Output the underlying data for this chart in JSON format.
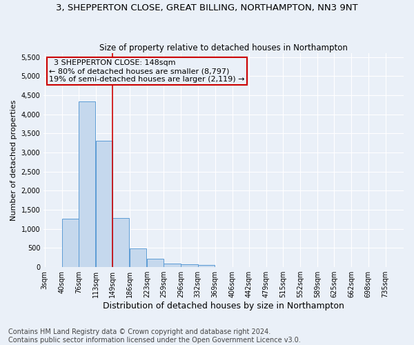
{
  "title": "3, SHEPPERTON CLOSE, GREAT BILLING, NORTHAMPTON, NN3 9NT",
  "subtitle": "Size of property relative to detached houses in Northampton",
  "xlabel": "Distribution of detached houses by size in Northampton",
  "ylabel": "Number of detached properties",
  "footer_line1": "Contains HM Land Registry data © Crown copyright and database right 2024.",
  "footer_line2": "Contains public sector information licensed under the Open Government Licence v3.0.",
  "annotation_title": "3 SHEPPERTON CLOSE: 148sqm",
  "annotation_line1": "← 80% of detached houses are smaller (8,797)",
  "annotation_line2": "19% of semi-detached houses are larger (2,119) →",
  "bar_color": "#c5d8ed",
  "bar_edge_color": "#5b9bd5",
  "vline_color": "#cc0000",
  "bg_color": "#eaf0f8",
  "annotation_box_color": "#cc0000",
  "categories": [
    "3sqm",
    "40sqm",
    "76sqm",
    "113sqm",
    "149sqm",
    "186sqm",
    "223sqm",
    "259sqm",
    "296sqm",
    "332sqm",
    "369sqm",
    "406sqm",
    "442sqm",
    "479sqm",
    "515sqm",
    "552sqm",
    "589sqm",
    "625sqm",
    "662sqm",
    "698sqm",
    "735sqm"
  ],
  "bin_edges": [
    3,
    40,
    76,
    113,
    149,
    186,
    223,
    259,
    296,
    332,
    369,
    406,
    442,
    479,
    515,
    552,
    589,
    625,
    662,
    698,
    735
  ],
  "bin_width": 37,
  "values": [
    0,
    1270,
    4330,
    3300,
    1280,
    490,
    220,
    90,
    70,
    50,
    0,
    0,
    0,
    0,
    0,
    0,
    0,
    0,
    0,
    0,
    0
  ],
  "ylim": [
    0,
    5600
  ],
  "yticks": [
    0,
    500,
    1000,
    1500,
    2000,
    2500,
    3000,
    3500,
    4000,
    4500,
    5000,
    5500
  ],
  "grid_color": "#ffffff",
  "title_fontsize": 9.5,
  "subtitle_fontsize": 8.5,
  "ylabel_fontsize": 8,
  "xlabel_fontsize": 9,
  "tick_fontsize": 7,
  "annotation_fontsize": 8,
  "footer_fontsize": 7
}
